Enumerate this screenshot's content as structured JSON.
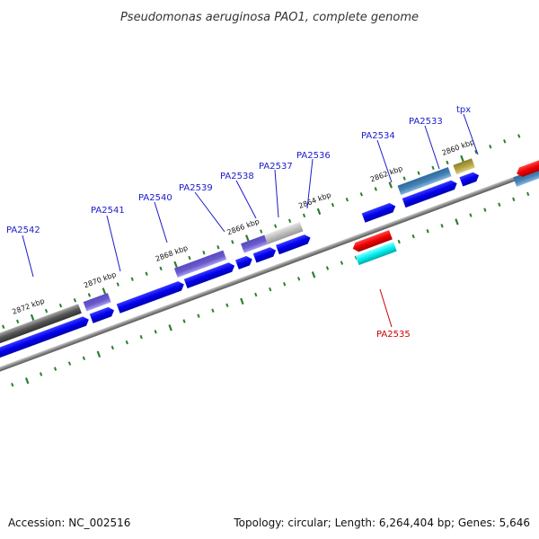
{
  "header": {
    "title": "Pseudomonas aeruginosa PAO1, complete genome"
  },
  "footer": {
    "accession": "Accession: NC_002516",
    "summary": "Topology: circular; Length: 6,264,404 bp; Genes: 5,646"
  },
  "scale_labels": [
    "2872 kbp",
    "2870 kbp",
    "2868 kbp",
    "2866 kbp",
    "2864 kbp",
    "2862 kbp",
    "2860 kbp"
  ],
  "gene_labels": [
    "PA2542",
    "PA2541",
    "PA2540",
    "PA2539",
    "PA2538",
    "PA2537",
    "PA2536",
    "PA2534",
    "PA2533",
    "tpx",
    "PA2535"
  ],
  "colors": {
    "backbone": "#888888",
    "ticks": "#2e7d2e",
    "cds": "#0000ee",
    "label_blue": "#1a1acc",
    "label_red": "#cc0000",
    "gene_dark_gray": "#555555",
    "gene_purple": "#6a5acd",
    "gene_light_gray": "#aaaaaa",
    "gene_steel": "#4682b4",
    "gene_olive": "#b5a642",
    "gene_red": "#ee0000",
    "gene_cyan": "#00eeee"
  }
}
